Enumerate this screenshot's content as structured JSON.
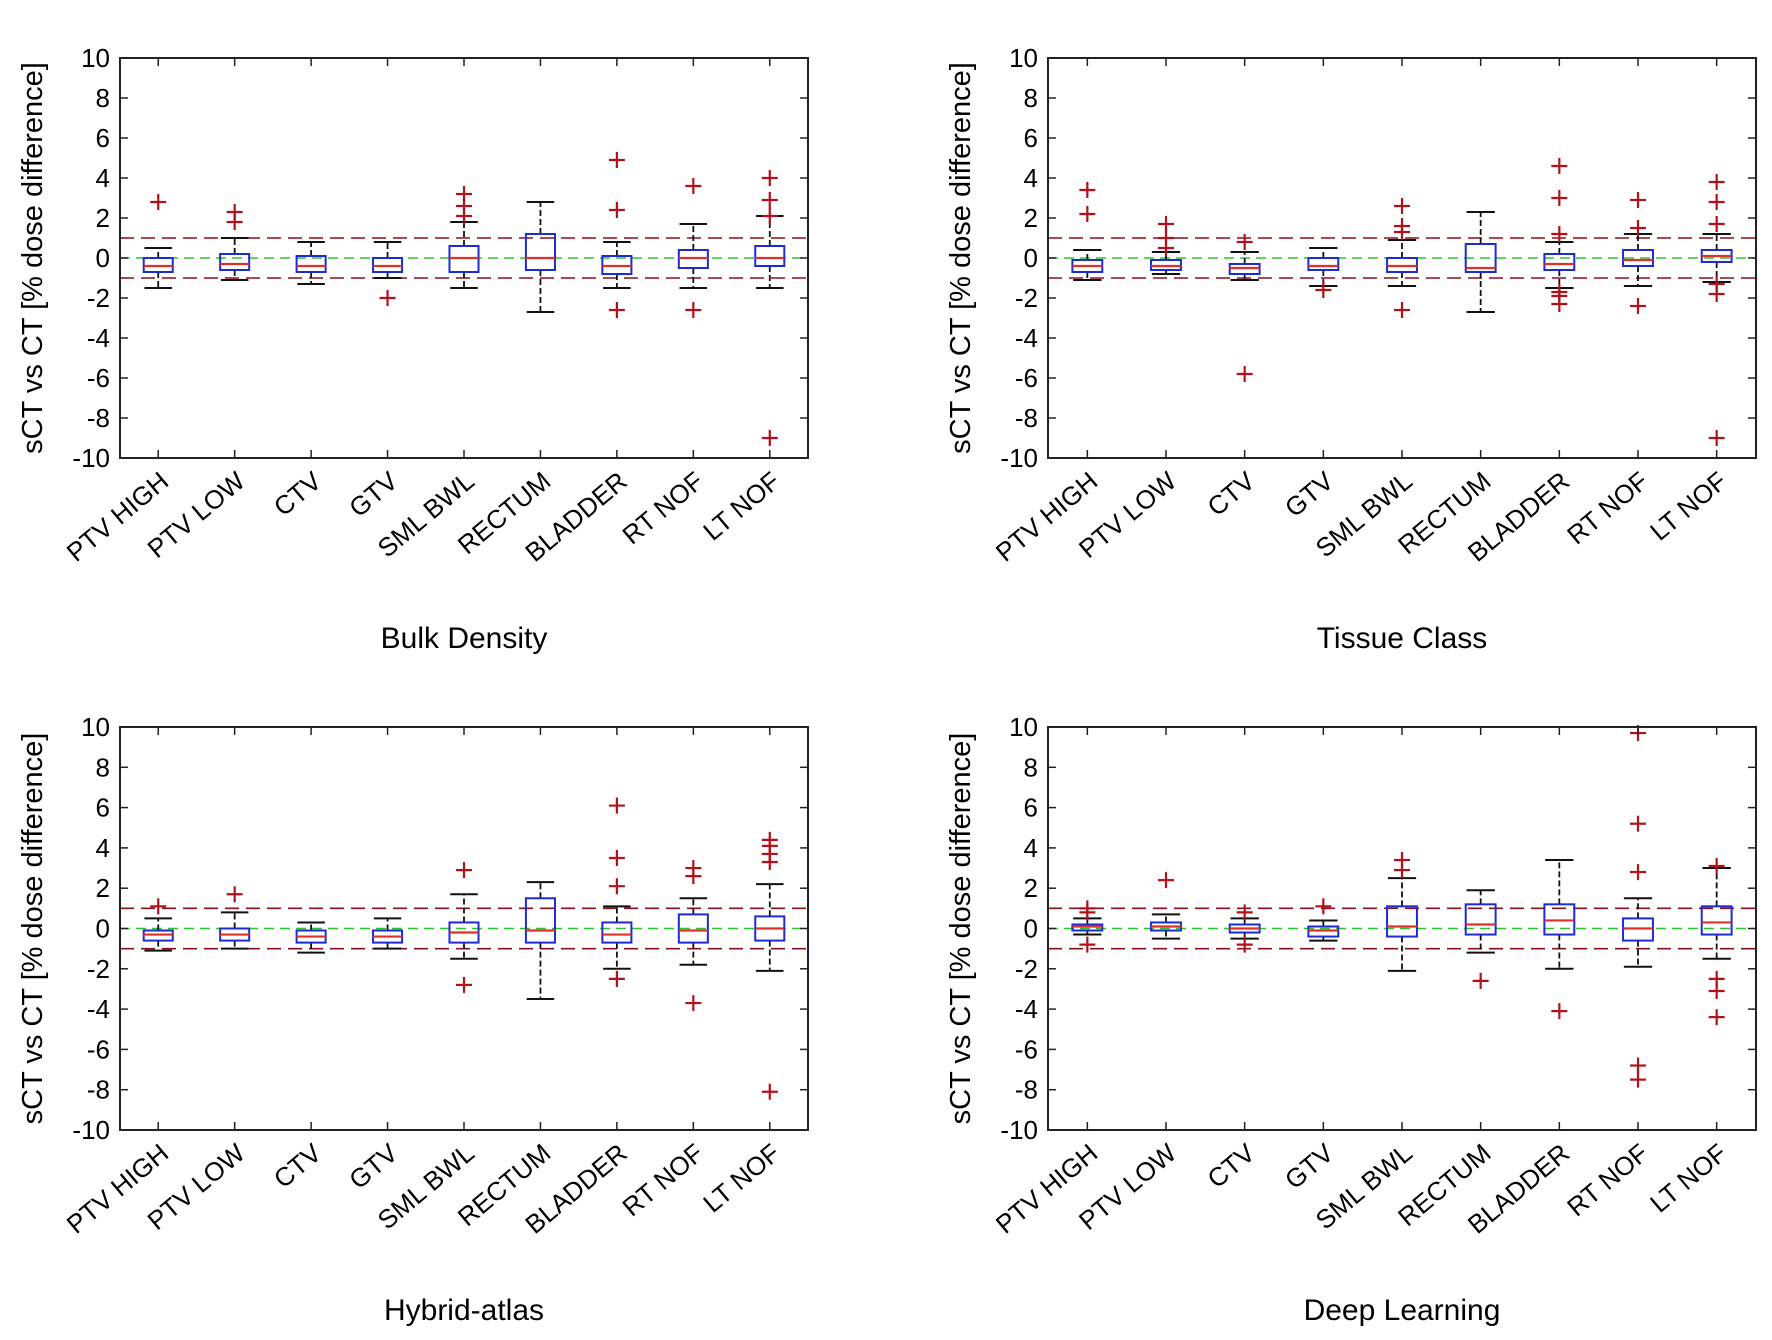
{
  "chart_data": [
    {
      "type": "box",
      "xlabel": "Bulk Density",
      "ylabel": "sCT vs CT [% dose difference]",
      "ylim": [
        -10,
        10
      ],
      "yticks": [
        "10",
        "8",
        "6",
        "4",
        "2",
        "0",
        "-2",
        "-4",
        "-6",
        "-8",
        "-10"
      ],
      "ref_lines": {
        "upper": 1,
        "zero": 0,
        "lower": -1
      },
      "categories": [
        "PTV HIGH",
        "PTV LOW",
        "CTV",
        "GTV",
        "SML BWL",
        "RECTUM",
        "BLADDER",
        "RT NOF",
        "LT NOF"
      ],
      "boxes": [
        {
          "wlo": -1.5,
          "q1": -0.7,
          "med": -0.4,
          "q3": 0.0,
          "whi": 0.5,
          "outliers": [
            2.8
          ]
        },
        {
          "wlo": -1.1,
          "q1": -0.6,
          "med": -0.3,
          "q3": 0.2,
          "whi": 1.0,
          "outliers": [
            1.8,
            2.3
          ]
        },
        {
          "wlo": -1.3,
          "q1": -0.7,
          "med": -0.4,
          "q3": 0.1,
          "whi": 0.8,
          "outliers": []
        },
        {
          "wlo": -1.0,
          "q1": -0.7,
          "med": -0.4,
          "q3": 0.0,
          "whi": 0.8,
          "outliers": [
            -2.0
          ]
        },
        {
          "wlo": -1.5,
          "q1": -0.7,
          "med": 0.0,
          "q3": 0.6,
          "whi": 1.8,
          "outliers": [
            2.1,
            2.6,
            3.2
          ]
        },
        {
          "wlo": -2.7,
          "q1": -0.6,
          "med": 0.0,
          "q3": 1.2,
          "whi": 2.8,
          "outliers": []
        },
        {
          "wlo": -1.5,
          "q1": -0.8,
          "med": -0.4,
          "q3": 0.1,
          "whi": 0.8,
          "outliers": [
            -2.6,
            2.4,
            4.9
          ]
        },
        {
          "wlo": -1.5,
          "q1": -0.5,
          "med": 0.0,
          "q3": 0.4,
          "whi": 1.7,
          "outliers": [
            -2.6,
            3.6
          ]
        },
        {
          "wlo": -1.5,
          "q1": -0.4,
          "med": 0.0,
          "q3": 0.6,
          "whi": 2.1,
          "outliers": [
            -9.0,
            2.1,
            2.9,
            4.0
          ]
        }
      ]
    },
    {
      "type": "box",
      "xlabel": "Tissue Class",
      "ylabel": "sCT vs CT [% dose difference]",
      "ylim": [
        -10,
        10
      ],
      "yticks": [
        "10",
        "8",
        "6",
        "4",
        "2",
        "0",
        "-2",
        "-4",
        "-6",
        "-8",
        "-10"
      ],
      "ref_lines": {
        "upper": 1,
        "zero": 0,
        "lower": -1
      },
      "categories": [
        "PTV HIGH",
        "PTV LOW",
        "CTV",
        "GTV",
        "SML BWL",
        "RECTUM",
        "BLADDER",
        "RT NOF",
        "LT NOF"
      ],
      "boxes": [
        {
          "wlo": -1.1,
          "q1": -0.7,
          "med": -0.4,
          "q3": -0.1,
          "whi": 0.4,
          "outliers": [
            2.2,
            3.4
          ]
        },
        {
          "wlo": -0.8,
          "q1": -0.6,
          "med": -0.4,
          "q3": -0.1,
          "whi": 0.3,
          "outliers": [
            0.5,
            1.0,
            1.7
          ]
        },
        {
          "wlo": -1.1,
          "q1": -0.8,
          "med": -0.5,
          "q3": -0.3,
          "whi": 0.3,
          "outliers": [
            -5.8,
            0.8
          ]
        },
        {
          "wlo": -1.4,
          "q1": -0.6,
          "med": -0.4,
          "q3": 0.0,
          "whi": 0.5,
          "outliers": [
            -1.6
          ]
        },
        {
          "wlo": -1.4,
          "q1": -0.7,
          "med": -0.4,
          "q3": 0.0,
          "whi": 0.9,
          "outliers": [
            -2.6,
            1.3,
            1.6,
            2.6
          ]
        },
        {
          "wlo": -2.7,
          "q1": -0.7,
          "med": -0.5,
          "q3": 0.7,
          "whi": 2.3,
          "outliers": []
        },
        {
          "wlo": -1.5,
          "q1": -0.6,
          "med": -0.3,
          "q3": 0.2,
          "whi": 0.8,
          "outliers": [
            -2.3,
            -1.9,
            -1.7,
            1.2,
            3.0,
            4.6
          ]
        },
        {
          "wlo": -1.4,
          "q1": -0.4,
          "med": -0.1,
          "q3": 0.4,
          "whi": 1.2,
          "outliers": [
            -2.4,
            1.5,
            2.9
          ]
        },
        {
          "wlo": -1.2,
          "q1": -0.2,
          "med": 0.1,
          "q3": 0.4,
          "whi": 1.2,
          "outliers": [
            -9.0,
            -1.8,
            -1.3,
            1.7,
            2.8,
            3.8
          ]
        }
      ]
    },
    {
      "type": "box",
      "xlabel": "Hybrid-atlas",
      "ylabel": "sCT vs CT [% dose difference]",
      "ylim": [
        -10,
        10
      ],
      "yticks": [
        "10",
        "8",
        "6",
        "4",
        "2",
        "0",
        "-2",
        "-4",
        "-6",
        "-8",
        "-10"
      ],
      "ref_lines": {
        "upper": 1,
        "zero": 0,
        "lower": -1
      },
      "categories": [
        "PTV HIGH",
        "PTV LOW",
        "CTV",
        "GTV",
        "SML BWL",
        "RECTUM",
        "BLADDER",
        "RT NOF",
        "LT NOF"
      ],
      "boxes": [
        {
          "wlo": -1.1,
          "q1": -0.6,
          "med": -0.3,
          "q3": -0.1,
          "whi": 0.5,
          "outliers": [
            1.1
          ]
        },
        {
          "wlo": -1.0,
          "q1": -0.6,
          "med": -0.3,
          "q3": 0.0,
          "whi": 0.8,
          "outliers": [
            1.7
          ]
        },
        {
          "wlo": -1.2,
          "q1": -0.7,
          "med": -0.4,
          "q3": -0.1,
          "whi": 0.3,
          "outliers": []
        },
        {
          "wlo": -1.0,
          "q1": -0.7,
          "med": -0.4,
          "q3": -0.1,
          "whi": 0.5,
          "outliers": []
        },
        {
          "wlo": -1.5,
          "q1": -0.7,
          "med": -0.2,
          "q3": 0.3,
          "whi": 1.7,
          "outliers": [
            -2.8,
            2.9
          ]
        },
        {
          "wlo": -3.5,
          "q1": -0.7,
          "med": -0.1,
          "q3": 1.5,
          "whi": 2.3,
          "outliers": []
        },
        {
          "wlo": -2.0,
          "q1": -0.7,
          "med": -0.3,
          "q3": 0.3,
          "whi": 1.1,
          "outliers": [
            -2.5,
            2.1,
            3.5,
            6.1
          ]
        },
        {
          "wlo": -1.8,
          "q1": -0.7,
          "med": -0.1,
          "q3": 0.7,
          "whi": 1.5,
          "outliers": [
            -3.7,
            2.6,
            3.0
          ]
        },
        {
          "wlo": -2.1,
          "q1": -0.6,
          "med": 0.0,
          "q3": 0.6,
          "whi": 2.2,
          "outliers": [
            -8.1,
            3.3,
            3.7,
            4.1,
            4.4
          ]
        }
      ]
    },
    {
      "type": "box",
      "xlabel": "Deep Learning",
      "ylabel": "sCT vs CT [% dose difference]",
      "ylim": [
        -10,
        10
      ],
      "yticks": [
        "10",
        "8",
        "6",
        "4",
        "2",
        "0",
        "-2",
        "-4",
        "-6",
        "-8",
        "-10"
      ],
      "ref_lines": {
        "upper": 1,
        "zero": 0,
        "lower": -1
      },
      "categories": [
        "PTV HIGH",
        "PTV LOW",
        "CTV",
        "GTV",
        "SML BWL",
        "RECTUM",
        "BLADDER",
        "RT NOF",
        "LT NOF"
      ],
      "boxes": [
        {
          "wlo": -0.3,
          "q1": -0.1,
          "med": 0.1,
          "q3": 0.2,
          "whi": 0.5,
          "outliers": [
            -0.8,
            0.8,
            1.0
          ]
        },
        {
          "wlo": -0.5,
          "q1": -0.1,
          "med": 0.1,
          "q3": 0.3,
          "whi": 0.7,
          "outliers": [
            2.4
          ]
        },
        {
          "wlo": -0.5,
          "q1": -0.2,
          "med": 0.0,
          "q3": 0.2,
          "whi": 0.5,
          "outliers": [
            -0.8,
            0.8
          ]
        },
        {
          "wlo": -0.6,
          "q1": -0.4,
          "med": -0.1,
          "q3": 0.1,
          "whi": 0.4,
          "outliers": [
            1.1
          ]
        },
        {
          "wlo": -2.1,
          "q1": -0.4,
          "med": 0.1,
          "q3": 1.1,
          "whi": 2.5,
          "outliers": [
            2.9,
            3.4
          ]
        },
        {
          "wlo": -1.2,
          "q1": -0.3,
          "med": 0.2,
          "q3": 1.2,
          "whi": 1.9,
          "outliers": [
            -2.6
          ]
        },
        {
          "wlo": -2.0,
          "q1": -0.3,
          "med": 0.4,
          "q3": 1.2,
          "whi": 3.4,
          "outliers": [
            -4.1
          ]
        },
        {
          "wlo": -1.9,
          "q1": -0.6,
          "med": 0.0,
          "q3": 0.5,
          "whi": 1.5,
          "outliers": [
            -7.5,
            -6.8,
            2.8,
            5.2,
            9.7
          ]
        },
        {
          "wlo": -1.5,
          "q1": -0.3,
          "med": 0.3,
          "q3": 1.1,
          "whi": 3.0,
          "outliers": [
            -4.4,
            -3.1,
            -2.5,
            3.1
          ]
        }
      ]
    }
  ]
}
